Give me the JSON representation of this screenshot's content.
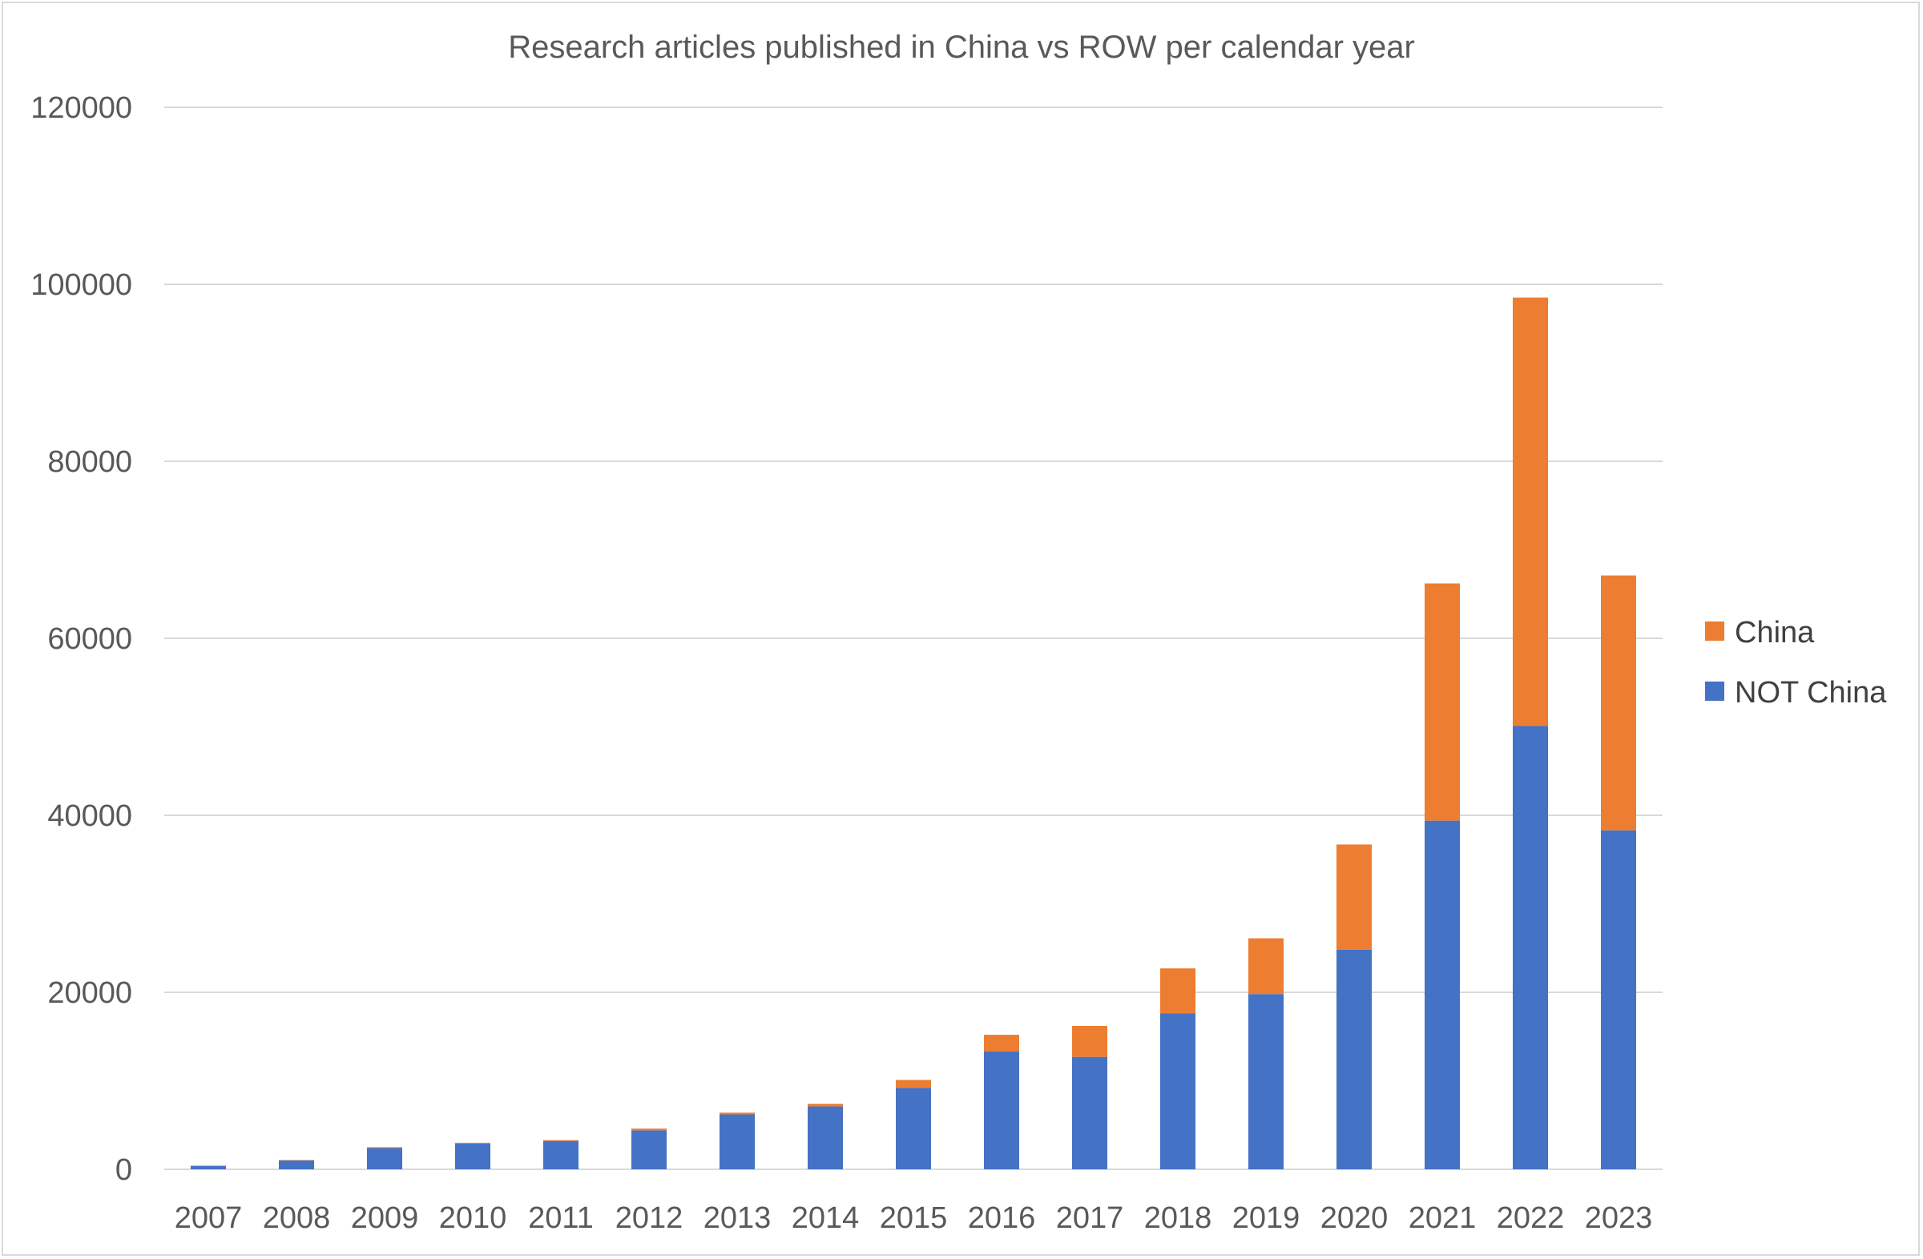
{
  "chart_data": {
    "type": "bar",
    "stacked": true,
    "title": "Research articles published in China vs ROW per calendar year",
    "xlabel": "",
    "ylabel": "",
    "ylim": [
      0,
      120000
    ],
    "yticks": [
      0,
      20000,
      40000,
      60000,
      80000,
      100000,
      120000
    ],
    "grid": true,
    "legend_position": "right",
    "categories": [
      "2007",
      "2008",
      "2009",
      "2010",
      "2011",
      "2012",
      "2013",
      "2014",
      "2015",
      "2016",
      "2017",
      "2018",
      "2019",
      "2020",
      "2021",
      "2022",
      "2023"
    ],
    "series": [
      {
        "name": "NOT China",
        "color": "#4472C4",
        "values": [
          400,
          1000,
          2400,
          2900,
          3200,
          4400,
          6200,
          7100,
          9200,
          13300,
          12700,
          17600,
          19800,
          24800,
          39400,
          50100,
          38300
        ]
      },
      {
        "name": "China",
        "color": "#ED7D31",
        "values": [
          0,
          50,
          100,
          100,
          100,
          200,
          200,
          300,
          900,
          1900,
          3500,
          5100,
          6300,
          11900,
          26800,
          48400,
          28800
        ]
      }
    ],
    "legend_order": [
      "China",
      "NOT China"
    ]
  }
}
